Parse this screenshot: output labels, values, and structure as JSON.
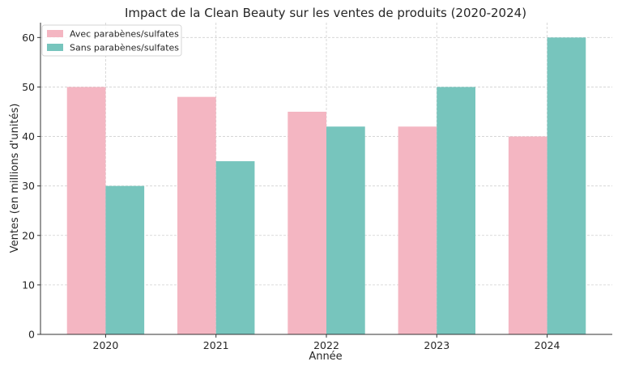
{
  "chart_data": {
    "type": "bar",
    "title": "Impact de la Clean Beauty sur les ventes de produits (2020-2024)",
    "xlabel": "Année",
    "ylabel": "Ventes (en millions d'unités)",
    "categories": [
      "2020",
      "2021",
      "2022",
      "2023",
      "2024"
    ],
    "series": [
      {
        "name": "Avec parabènes/sulfates",
        "values": [
          50,
          48,
          45,
          42,
          40
        ],
        "color": "#f4b6c2"
      },
      {
        "name": "Sans parabènes/sulfates",
        "values": [
          30,
          35,
          42,
          50,
          60
        ],
        "color": "#77c5bd"
      }
    ],
    "ylim": [
      0,
      63
    ],
    "yticks": [
      0,
      10,
      20,
      30,
      40,
      50,
      60
    ],
    "grid": true,
    "legend_position": "top-left"
  }
}
